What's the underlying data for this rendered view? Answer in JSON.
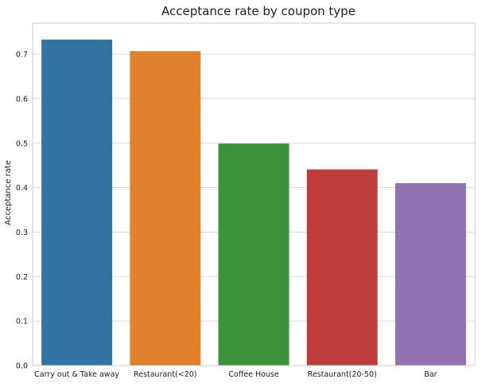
{
  "chart_data": {
    "type": "bar",
    "title": "Acceptance rate by coupon type",
    "xlabel": "",
    "ylabel": "Acceptance rate",
    "categories": [
      "Carry out & Take away",
      "Restaurant(<20)",
      "Coffee House",
      "Restaurant(20-50)",
      "Bar"
    ],
    "values": [
      0.733,
      0.707,
      0.499,
      0.441,
      0.41
    ],
    "colors": [
      "#3274a1",
      "#e1812c",
      "#3a923a",
      "#c03d3e",
      "#9372b2"
    ],
    "ylim": [
      0,
      0.77
    ],
    "yticks": [
      "0.0",
      "0.1",
      "0.2",
      "0.3",
      "0.4",
      "0.5",
      "0.6",
      "0.7"
    ],
    "grid": true,
    "legend": "none",
    "background": "#ffffff",
    "grid_color": "#dcdcdc",
    "spine_color": "#cccccc",
    "text_color": "#222222"
  }
}
